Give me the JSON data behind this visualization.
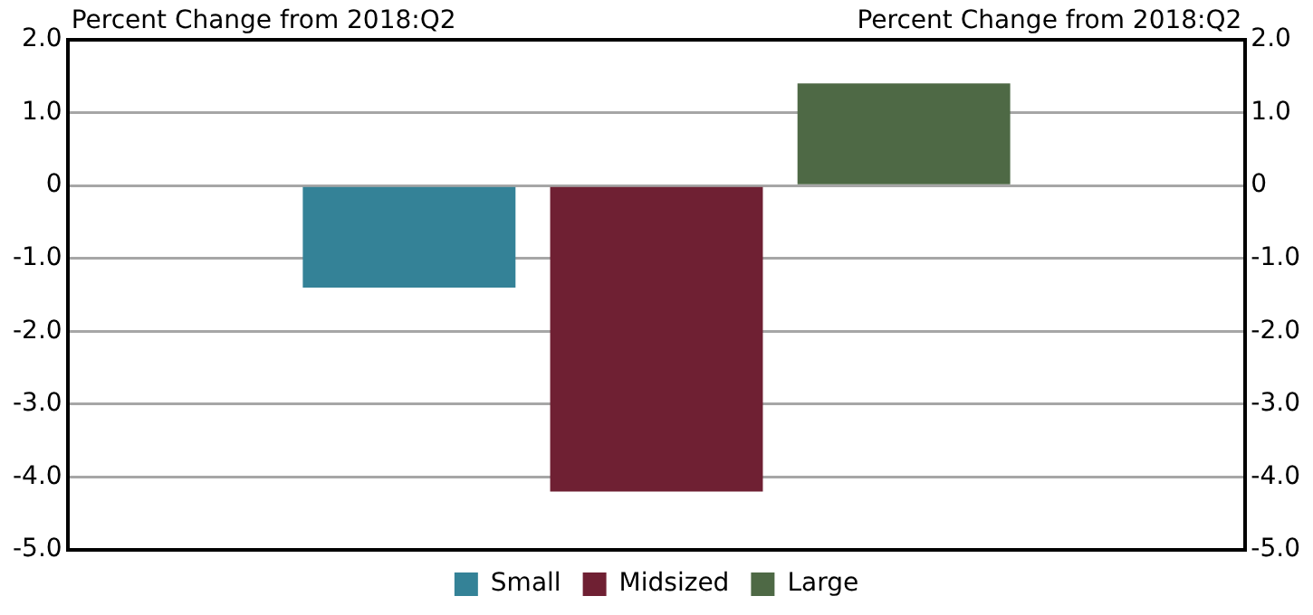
{
  "chart_data": {
    "type": "bar",
    "ylabel": "Percent Change from 2018:Q2",
    "y2label": "Percent Change from 2018:Q2",
    "categories": [
      null
    ],
    "series": [
      {
        "name": "Small",
        "color": "#348297",
        "values": [
          -1.4
        ]
      },
      {
        "name": "Midsized",
        "color": "#6f2033",
        "values": [
          -4.2
        ]
      },
      {
        "name": "Large",
        "color": "#4e6945",
        "values": [
          1.4
        ]
      }
    ],
    "ylim": [
      -5,
      2
    ],
    "yticks": [
      {
        "value": -5,
        "label": "-5.0"
      },
      {
        "value": -4,
        "label": "-4.0"
      },
      {
        "value": -3,
        "label": "-3.0"
      },
      {
        "value": -2,
        "label": "-2.0"
      },
      {
        "value": -1,
        "label": "-1.0"
      },
      0,
      {
        "value": 1,
        "label": "1.0"
      },
      {
        "value": 2,
        "label": "2.0"
      }
    ],
    "y2lim": [
      -5,
      2
    ],
    "y2ticks": [
      {
        "value": -5,
        "label": "-5.0"
      },
      {
        "value": -4,
        "label": "-4.0"
      },
      {
        "value": -3,
        "label": "-3.0"
      },
      {
        "value": -2,
        "label": "-2.0"
      },
      {
        "value": -1,
        "label": "-1.0"
      },
      0,
      {
        "value": 1,
        "label": "1.0"
      },
      {
        "value": 2,
        "label": "2.0"
      }
    ],
    "grid": "y",
    "legend": "bottom"
  }
}
